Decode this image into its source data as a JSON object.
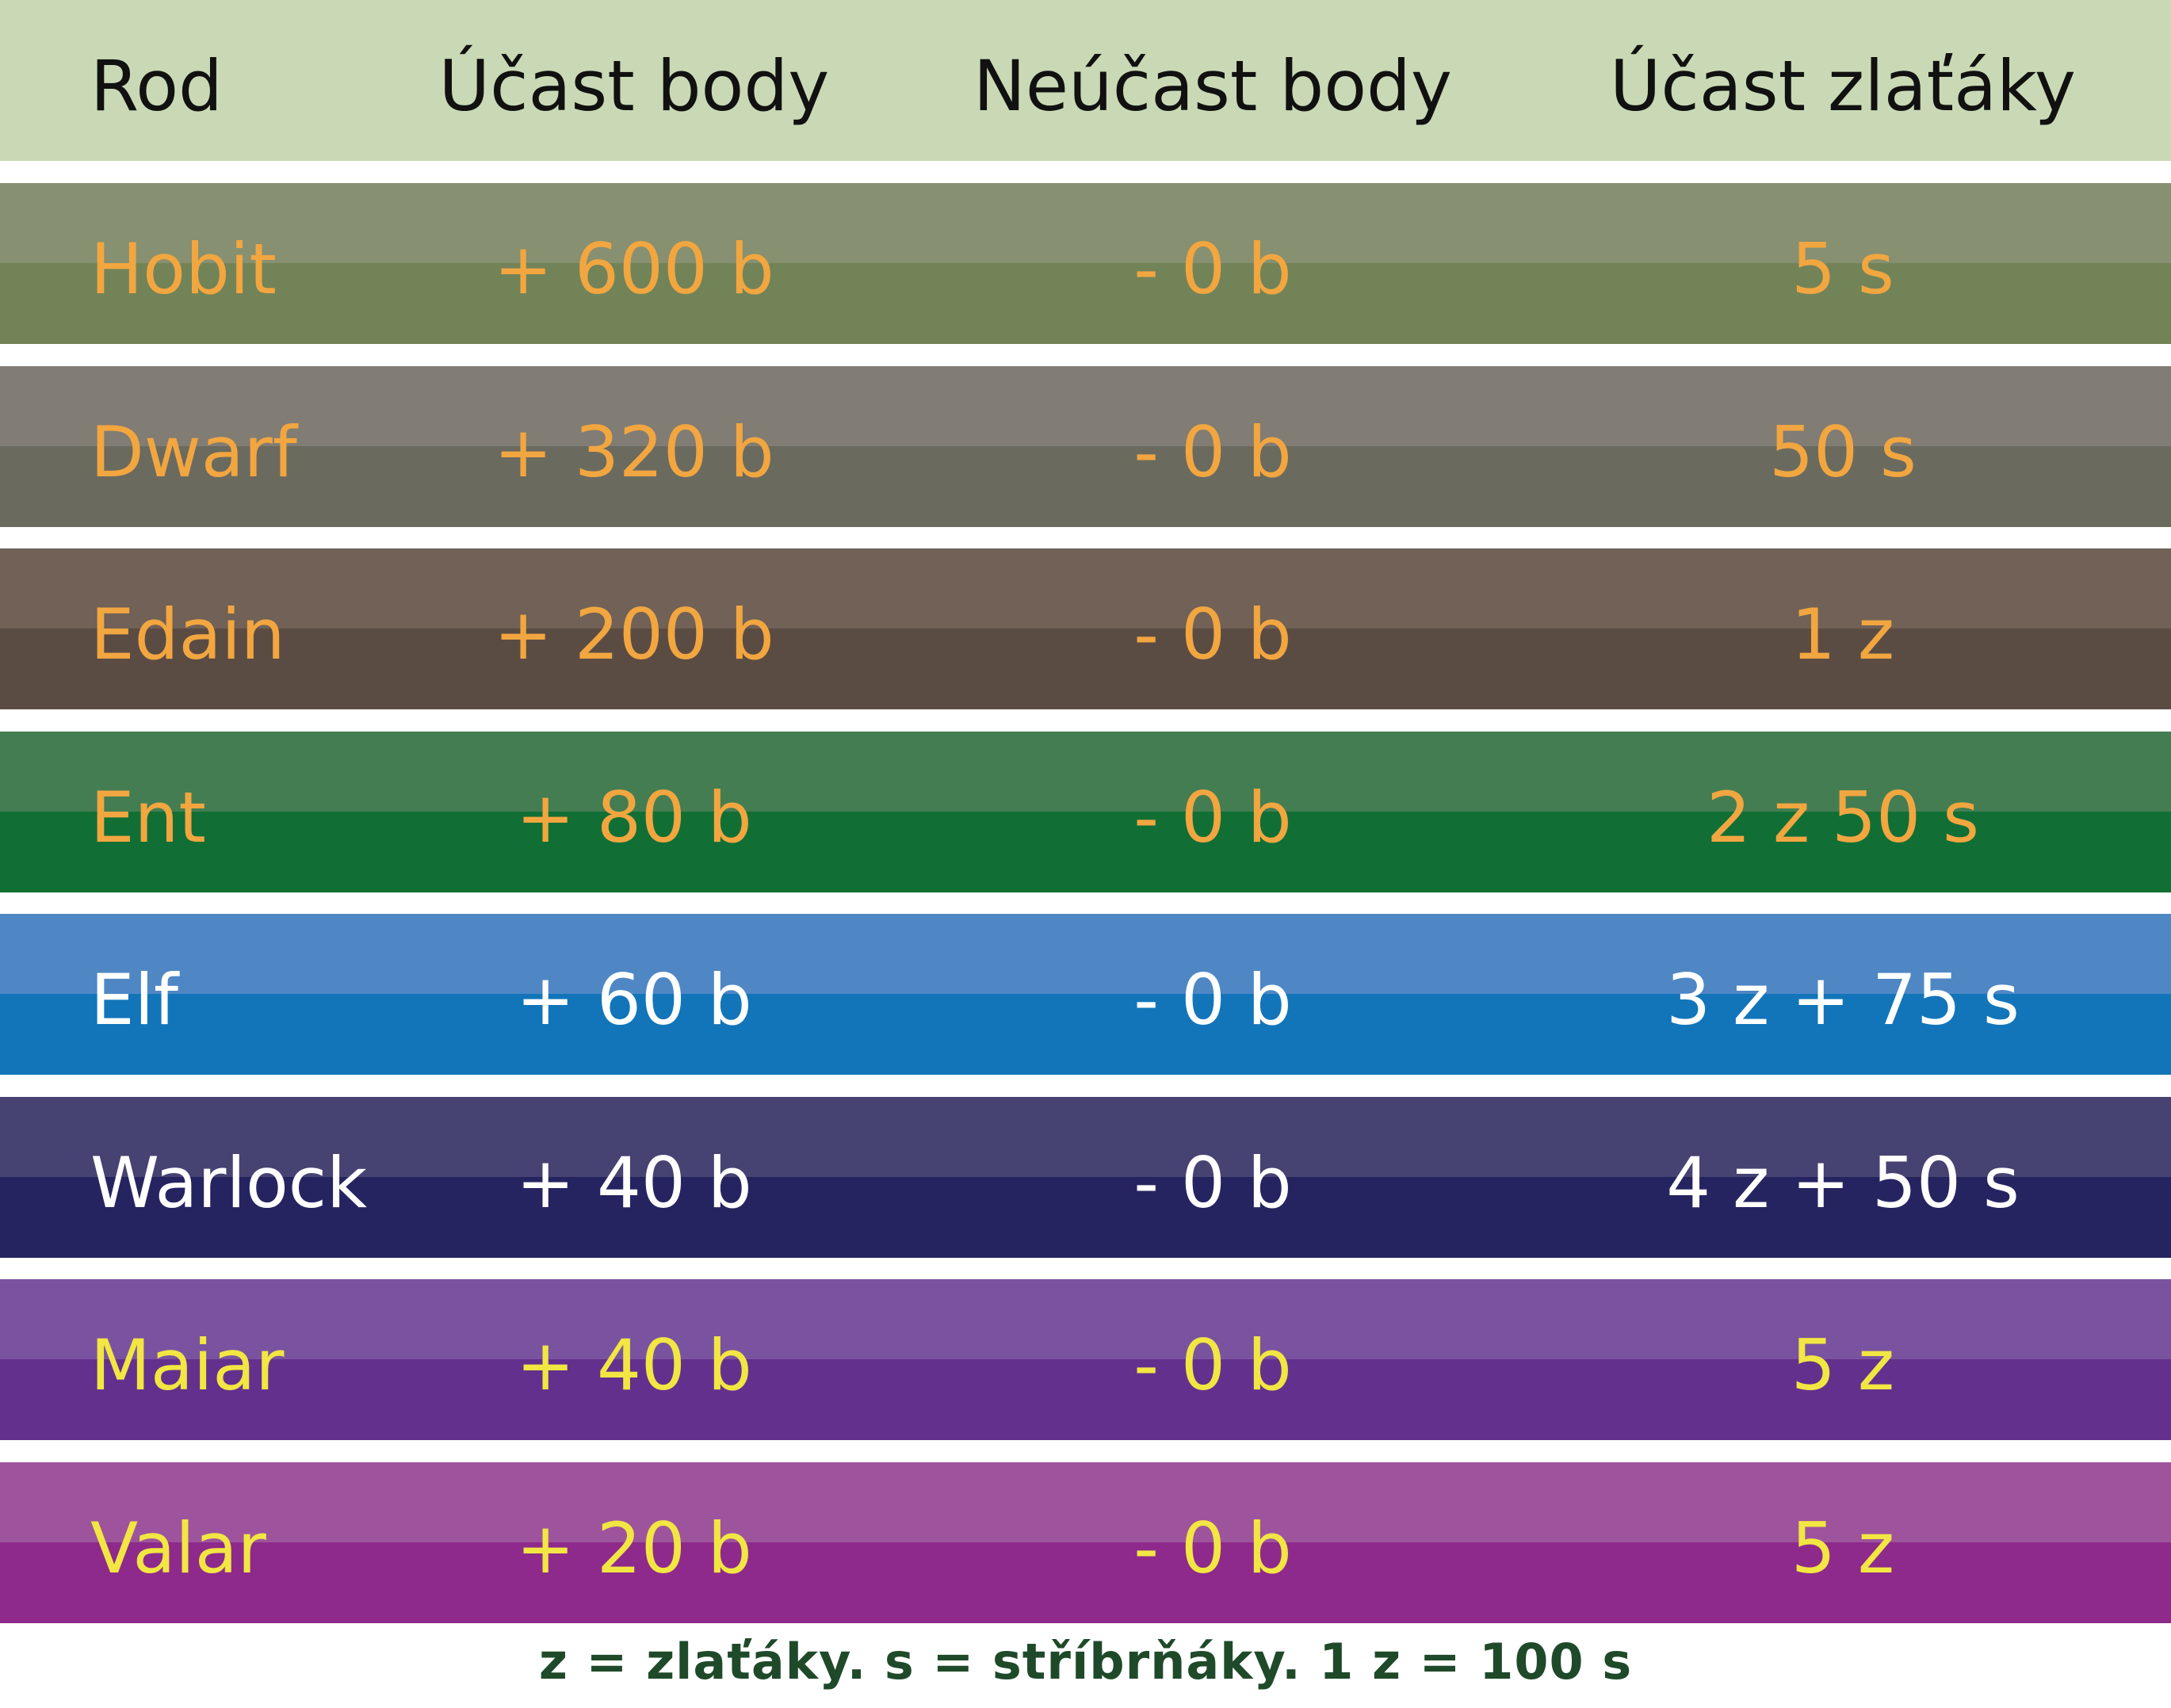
{
  "header": {
    "col_rod": "Rod",
    "col_ucast_body": "Účast body",
    "col_neucast_body": "Neúčast body",
    "col_ucast_zlataky": "Účast zlaťáky"
  },
  "rows": [
    {
      "rod": "Hobit",
      "ucast_body": "+ 600 b",
      "neucast_body": "- 0 b",
      "ucast_zlataky": "5 s",
      "color_top": "#879070",
      "color_bottom": "#728358",
      "text_color": "#f2a640"
    },
    {
      "rod": "Dwarf",
      "ucast_body": "+ 320 b",
      "neucast_body": "- 0 b",
      "ucast_zlataky": "50 s",
      "color_top": "#817c74",
      "color_bottom": "#6b6a5f",
      "text_color": "#f2a640"
    },
    {
      "rod": "Edain",
      "ucast_body": "+ 200 b",
      "neucast_body": "- 0 b",
      "ucast_zlataky": "1 z",
      "color_top": "#716157",
      "color_bottom": "#5b4c43",
      "text_color": "#f2a640"
    },
    {
      "rod": "Ent",
      "ucast_body": "+ 80 b",
      "neucast_body": "- 0 b",
      "ucast_zlataky": "2 z 50 s",
      "color_top": "#447d52",
      "color_bottom": "#116f35",
      "text_color": "#f2a640"
    },
    {
      "rod": "Elf",
      "ucast_body": "+ 60 b",
      "neucast_body": "- 0 b",
      "ucast_zlataky": "3 z + 75 s",
      "color_top": "#4f87c5",
      "color_bottom": "#1275b9",
      "text_color": "#ffffff"
    },
    {
      "rod": "Warlock",
      "ucast_body": "+ 40 b",
      "neucast_body": "- 0 b",
      "ucast_zlataky": "4 z + 50 s",
      "color_top": "#464272",
      "color_bottom": "#262460",
      "text_color": "#ffffff"
    },
    {
      "rod": "Maiar",
      "ucast_body": "+ 40 b",
      "neucast_body": "- 0 b",
      "ucast_zlataky": "5 z",
      "color_top": "#7a53a0",
      "color_bottom": "#63318d",
      "text_color": "#f2e643"
    },
    {
      "rod": "Valar",
      "ucast_body": "+ 20 b",
      "neucast_body": "- 0 b",
      "ucast_zlataky": "5 z",
      "color_top": "#9e549c",
      "color_bottom": "#8e2a8c",
      "text_color": "#f2e643"
    }
  ],
  "footer": {
    "note": "z = zlaťáky. s  = stříbrňáky. 1 z = 100 s"
  }
}
